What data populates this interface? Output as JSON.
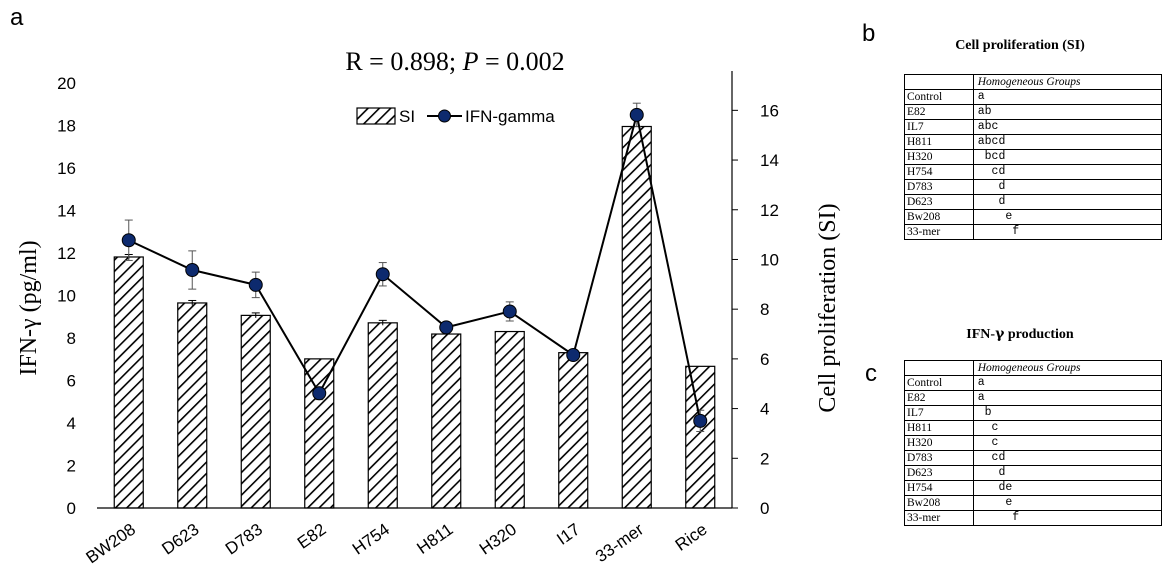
{
  "panels": {
    "a": "a",
    "b": "b",
    "c": "c"
  },
  "chart_data": {
    "type": "bar+line",
    "title_parts": {
      "r": "R = 0.898; ",
      "p_label": "P",
      "p_value": " = 0.002"
    },
    "categories": [
      "BW208",
      "D623",
      "D783",
      "E82",
      "H754",
      "H811",
      "H320",
      "I17",
      "33-mer",
      "Rice"
    ],
    "ylabel_left": "IFN-γ  (pg/ml)",
    "ylabel_right": "Cell proliferation (SI)",
    "ylim_left": [
      0,
      20
    ],
    "yticks_left": [
      0,
      2,
      4,
      6,
      8,
      10,
      12,
      14,
      16,
      18,
      20
    ],
    "ylim_right": [
      0,
      17.1
    ],
    "yticks_right": [
      0,
      2,
      4,
      6,
      8,
      10,
      12,
      14,
      16
    ],
    "legend": {
      "bar": "SI",
      "line": "IFN-gamma",
      "position": "top-center"
    },
    "series": [
      {
        "name": "SI",
        "kind": "bar",
        "axis": "right",
        "pattern": "diagonal-hatch",
        "values": [
          10.1,
          8.25,
          7.75,
          6.0,
          7.45,
          7.0,
          7.1,
          6.25,
          15.35,
          5.7
        ],
        "errors": [
          0.1,
          0.1,
          0.1,
          0.0,
          0.1,
          0.0,
          0.0,
          0.0,
          0.0,
          0.0
        ]
      },
      {
        "name": "IFN-gamma",
        "kind": "line",
        "axis": "left",
        "color": "#0d2a6e",
        "values": [
          12.6,
          11.2,
          10.5,
          5.4,
          11.0,
          8.5,
          9.25,
          7.2,
          18.5,
          4.1
        ],
        "errors": [
          0.95,
          0.9,
          0.6,
          0.3,
          0.55,
          0.2,
          0.45,
          0.15,
          0.55,
          0.5
        ]
      }
    ]
  },
  "table_b": {
    "title": "Cell proliferation (SI)",
    "header": "Homogeneous Groups",
    "rows": [
      {
        "name": "Control",
        "group": "a"
      },
      {
        "name": "E82",
        "group": "ab"
      },
      {
        "name": "IL7",
        "group": "abc"
      },
      {
        "name": "H811",
        "group": "abcd"
      },
      {
        "name": "H320",
        "group": " bcd"
      },
      {
        "name": "H754",
        "group": "  cd"
      },
      {
        "name": "D783",
        "group": "   d"
      },
      {
        "name": "D623",
        "group": "   d"
      },
      {
        "name": "Bw208",
        "group": "    e"
      },
      {
        "name": "33-mer",
        "group": "     f"
      }
    ]
  },
  "table_c": {
    "title_prefix": "IFN-",
    "title_gamma": "γ",
    "title_suffix": " production",
    "header": "Homogeneous Groups",
    "rows": [
      {
        "name": "Control",
        "group": "a"
      },
      {
        "name": "E82",
        "group": "a"
      },
      {
        "name": "IL7",
        "group": " b"
      },
      {
        "name": "H811",
        "group": "  c"
      },
      {
        "name": "H320",
        "group": "  c"
      },
      {
        "name": "D783",
        "group": "  cd"
      },
      {
        "name": "D623",
        "group": "   d"
      },
      {
        "name": "H754",
        "group": "   de"
      },
      {
        "name": "Bw208",
        "group": "    e"
      },
      {
        "name": "33-mer",
        "group": "     f"
      }
    ]
  }
}
